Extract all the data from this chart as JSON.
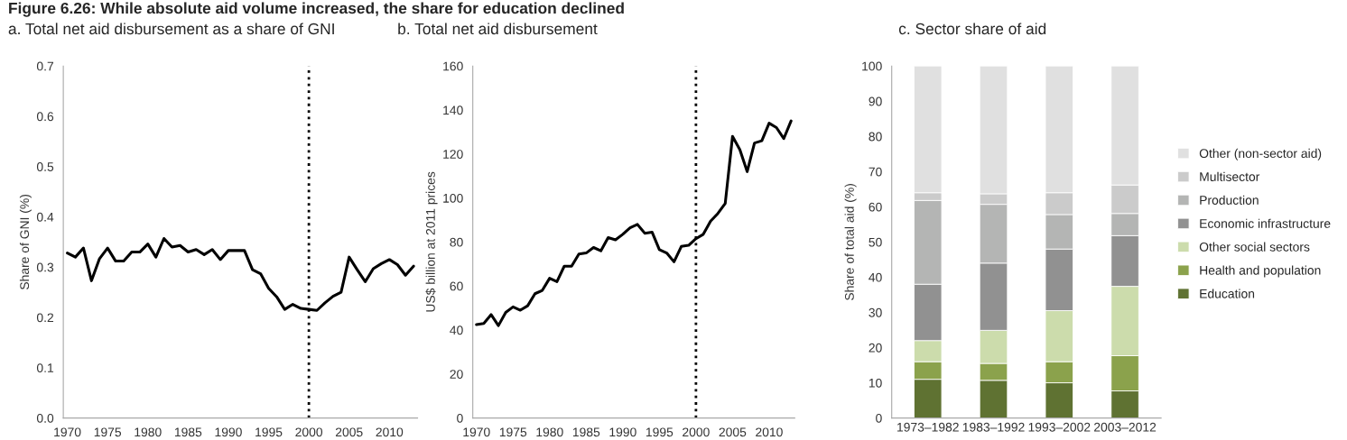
{
  "chart_data": [
    {
      "type": "line",
      "title": "a. Total net aid disbursement as a share of GNI",
      "ylabel": "Share of GNI (%)",
      "annotations": [
        "Figure 6.26: While absolute aid volume increased, the share for education declined"
      ],
      "x": [
        1970,
        1971,
        1972,
        1973,
        1974,
        1975,
        1976,
        1977,
        1978,
        1979,
        1980,
        1981,
        1982,
        1983,
        1984,
        1985,
        1986,
        1987,
        1988,
        1989,
        1990,
        1991,
        1992,
        1993,
        1994,
        1995,
        1996,
        1997,
        1998,
        1999,
        2000,
        2001,
        2002,
        2003,
        2004,
        2005,
        2006,
        2007,
        2008,
        2009,
        2010,
        2011,
        2012,
        2013
      ],
      "series": [
        {
          "color": "#000000",
          "values": [
            0.328,
            0.32,
            0.338,
            0.273,
            0.317,
            0.338,
            0.312,
            0.312,
            0.33,
            0.33,
            0.346,
            0.32,
            0.357,
            0.34,
            0.343,
            0.33,
            0.335,
            0.325,
            0.335,
            0.315,
            0.333,
            0.333,
            0.333,
            0.295,
            0.287,
            0.258,
            0.241,
            0.216,
            0.226,
            0.218,
            0.216,
            0.214,
            0.229,
            0.242,
            0.25,
            0.32,
            0.295,
            0.271,
            0.297,
            0.307,
            0.315,
            0.305,
            0.284,
            0.302
          ]
        }
      ],
      "xlim": [
        1969.5,
        2013.5
      ],
      "xticks": [
        1970,
        1975,
        1980,
        1985,
        1990,
        1995,
        2000,
        2005,
        2010
      ],
      "ylim": [
        0,
        0.7
      ],
      "yticks": [
        {
          "value": 0,
          "label": "0.0"
        },
        0.1,
        0.2,
        0.3,
        0.4,
        0.5,
        0.6,
        0.7
      ],
      "ref_lines": [
        {
          "axis": "x",
          "value": 2000,
          "color": "#000000",
          "line_style": "dotted"
        }
      ],
      "grid": false,
      "legend": false,
      "marker": "none",
      "line_style": "solid"
    },
    {
      "type": "line",
      "title": "b. Total net aid disbursement",
      "ylabel": "US$ billion at 2011 prices",
      "x": [
        1970,
        1971,
        1972,
        1973,
        1974,
        1975,
        1976,
        1977,
        1978,
        1979,
        1980,
        1981,
        1982,
        1983,
        1984,
        1985,
        1986,
        1987,
        1988,
        1989,
        1990,
        1991,
        1992,
        1993,
        1994,
        1995,
        1996,
        1997,
        1998,
        1999,
        2000,
        2001,
        2002,
        2003,
        2004,
        2005,
        2006,
        2007,
        2008,
        2009,
        2010,
        2011,
        2012,
        2013
      ],
      "series": [
        {
          "color": "#000000",
          "values": [
            42.5,
            43,
            47,
            42,
            48,
            50.5,
            49,
            51,
            56.5,
            58,
            63.5,
            62,
            69,
            69,
            74.5,
            75,
            77.5,
            76,
            82,
            81,
            83.5,
            86.5,
            88,
            84,
            84.5,
            76.5,
            75,
            71,
            78,
            78.5,
            81.5,
            83.5,
            89.5,
            93,
            97.5,
            128,
            122,
            112,
            125,
            126,
            134,
            132,
            127,
            135
          ]
        }
      ],
      "xlim": [
        1969.5,
        2013.5
      ],
      "xticks": [
        1970,
        1975,
        1980,
        1985,
        1990,
        1995,
        2000,
        2005,
        2010
      ],
      "ylim": [
        0,
        160
      ],
      "yticks": [
        0,
        20,
        40,
        60,
        80,
        100,
        120,
        140,
        160
      ],
      "ref_lines": [
        {
          "axis": "x",
          "value": 2000,
          "color": "#000000",
          "line_style": "dotted"
        }
      ],
      "grid": false,
      "legend": false,
      "marker": "none",
      "line_style": "solid"
    },
    {
      "type": "bar",
      "stacked": true,
      "title": "c. Sector share of aid",
      "ylabel": "Share of total aid (%)",
      "categories": [
        "1973–1982",
        "1983–1992",
        "1993–2002",
        "2003–2012"
      ],
      "series": [
        {
          "name": "Education",
          "color": "#5f7232",
          "values": [
            11,
            10.7,
            10,
            7.7
          ]
        },
        {
          "name": "Health and population",
          "color": "#8ba24c",
          "values": [
            5,
            4.8,
            6,
            10
          ]
        },
        {
          "name": "Other social sectors",
          "color": "#ccdcac",
          "values": [
            6,
            9.4,
            14.5,
            19.7
          ]
        },
        {
          "name": "Economic infrastructure",
          "color": "#919191",
          "values": [
            16,
            19.1,
            17.5,
            14.4
          ]
        },
        {
          "name": "Production",
          "color": "#b4b5b4",
          "values": [
            23.8,
            16.7,
            9.8,
            6.3
          ]
        },
        {
          "name": "Multisector",
          "color": "#cbcbcb",
          "values": [
            2.2,
            3,
            6.2,
            8.1
          ]
        },
        {
          "name": "Other (non-sector aid)",
          "color": "#e0e0e0",
          "values": [
            36,
            36.3,
            36,
            33.8
          ]
        }
      ],
      "ylim": [
        0,
        100
      ],
      "yticks": [
        0,
        10,
        20,
        30,
        40,
        50,
        60,
        70,
        80,
        90,
        100
      ],
      "grid": false,
      "legend": "right"
    }
  ]
}
